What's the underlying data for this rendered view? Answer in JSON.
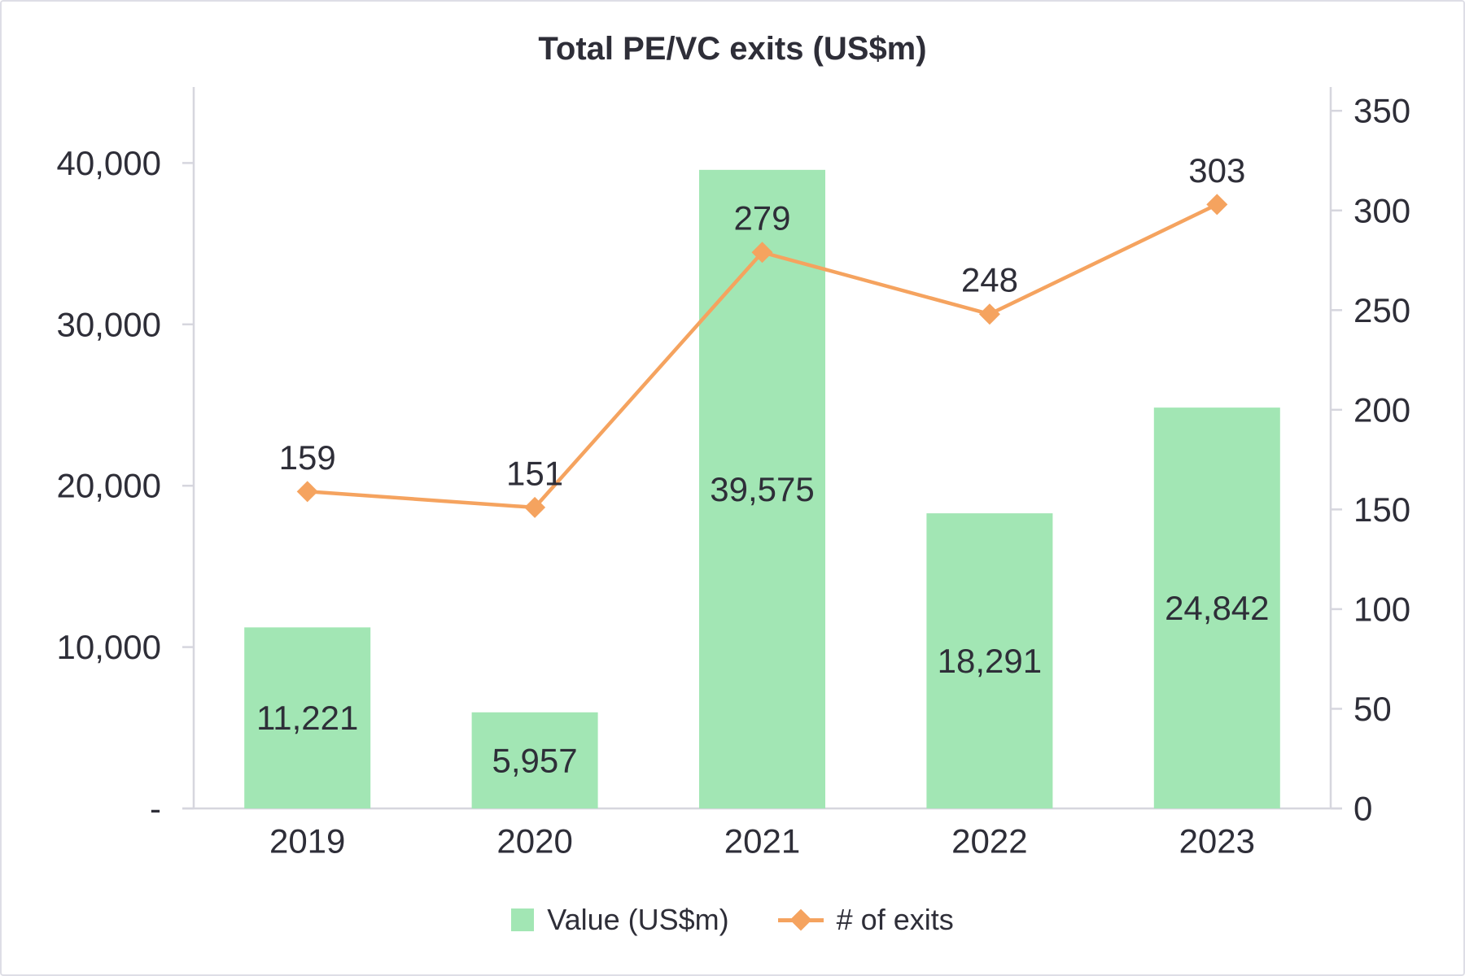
{
  "title": "Total PE/VC exits (US$m)",
  "colors": {
    "bar": "#a2e6b4",
    "line": "#f5a35f",
    "text": "#2e2e38",
    "axis": "#d6d6de"
  },
  "legend": [
    {
      "label": "Value (US$m)"
    },
    {
      "label": "# of exits"
    }
  ],
  "chart_data": {
    "type": "bar+line combo",
    "title": "Total PE/VC exits (US$m)",
    "categories": [
      "2019",
      "2020",
      "2021",
      "2022",
      "2023"
    ],
    "series": [
      {
        "name": "Value (US$m)",
        "type": "bar",
        "axis": "left",
        "values": [
          11221,
          5957,
          39575,
          18291,
          24842
        ],
        "labels": [
          "11,221",
          "5,957",
          "39,575",
          "18,291",
          "24,842"
        ]
      },
      {
        "name": "# of exits",
        "type": "line",
        "axis": "right",
        "values": [
          159,
          151,
          279,
          248,
          303
        ],
        "labels": [
          "159",
          "151",
          "279",
          "248",
          "303"
        ]
      }
    ],
    "left_axis": {
      "ticks": [
        0,
        10000,
        20000,
        30000,
        40000
      ],
      "tick_labels": [
        "-",
        "10,000",
        "20,000",
        "30,000",
        "40,000"
      ],
      "range": [
        0,
        45000
      ]
    },
    "right_axis": {
      "ticks": [
        0,
        50,
        100,
        150,
        200,
        250,
        300,
        350
      ],
      "tick_labels": [
        "0",
        "50",
        "100",
        "150",
        "200",
        "250",
        "300",
        "350"
      ],
      "range": [
        0,
        362
      ]
    },
    "grid": false,
    "legend_position": "bottom"
  }
}
